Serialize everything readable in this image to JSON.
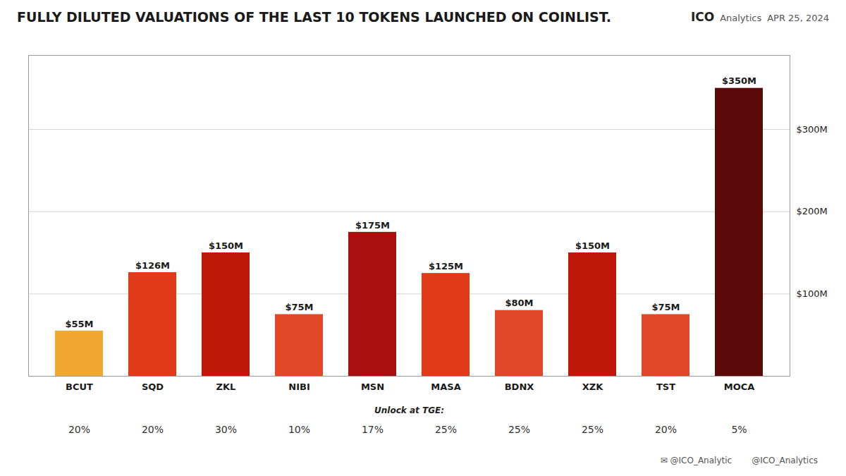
{
  "chart_data": {
    "type": "bar",
    "title": "FULLY DILUTED VALUATIONS OF THE LAST 10 TOKENS LAUNCHED ON COINLIST.",
    "categories": [
      "BCUT",
      "SQD",
      "ZKL",
      "NIBI",
      "MSN",
      "MASA",
      "BDNX",
      "XZK",
      "TST",
      "MOCA"
    ],
    "values": [
      55,
      126,
      150,
      75,
      175,
      125,
      80,
      150,
      75,
      350
    ],
    "value_labels": [
      "$55M",
      "$126M",
      "$150M",
      "$75M",
      "$175M",
      "$125M",
      "$80M",
      "$150M",
      "$75M",
      "$350M"
    ],
    "colors": [
      "#F0A830",
      "#E03A18",
      "#C01808",
      "#E04828",
      "#A81010",
      "#E03A18",
      "#E04828",
      "#C01808",
      "#E04828",
      "#5A0808"
    ],
    "data_labels": true,
    "ylim": [
      0,
      390
    ],
    "yticks": [
      {
        "value": 100,
        "label": "$100M"
      },
      {
        "value": 200,
        "label": "$200M"
      },
      {
        "value": 300,
        "label": "$300M"
      }
    ],
    "grid": true,
    "unlock_at_tge": {
      "label": "Unlock at TGE:",
      "values": [
        20,
        20,
        30,
        10,
        17,
        25,
        25,
        25,
        20,
        5
      ],
      "value_labels": [
        "20%",
        "20%",
        "30%",
        "10%",
        "17%",
        "25%",
        "25%",
        "25%",
        "20%",
        "5%"
      ]
    },
    "annotations": [
      "ICO",
      "Analytics",
      "APR 25, 2024",
      "✉ @ICO_Analytic",
      "@ICO_Analytics"
    ]
  }
}
